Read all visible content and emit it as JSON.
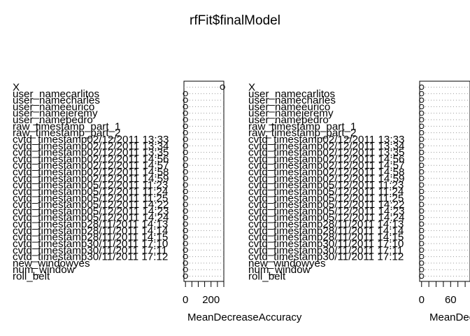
{
  "chart_data": {
    "type": "scatter",
    "title": "rfFit$finalModel",
    "variables": [
      "X",
      "user_namecarlitos",
      "user_namecharles",
      "user_nameeurico",
      "user_namejeremy",
      "user_namepedro",
      "raw_timestamp_part_1",
      "raw_timestamp_part_2",
      "cvtd_timestamp02/12/2011 13:33",
      "cvtd_timestamp02/12/2011 13:34",
      "cvtd_timestamp02/12/2011 13:35",
      "cvtd_timestamp02/12/2011 14:56",
      "cvtd_timestamp02/12/2011 14:57",
      "cvtd_timestamp02/12/2011 14:58",
      "cvtd_timestamp02/12/2011 14:59",
      "cvtd_timestamp05/12/2011 11:23",
      "cvtd_timestamp05/12/2011 11:24",
      "cvtd_timestamp05/12/2011 11:25",
      "cvtd_timestamp05/12/2011 14:22",
      "cvtd_timestamp05/12/2011 14:23",
      "cvtd_timestamp05/12/2011 14:24",
      "cvtd_timestamp28/11/2011 14:13",
      "cvtd_timestamp28/11/2011 14:14",
      "cvtd_timestamp28/11/2011 14:15",
      "cvtd_timestamp30/11/2011 17:10",
      "cvtd_timestamp30/11/2011 17:11",
      "cvtd_timestamp30/11/2011 17:12",
      "new_windowyes",
      "num_window",
      "roll_belt"
    ],
    "panels": [
      {
        "xlabel": "MeanDecreaseAccuracy",
        "ticks": [
          0,
          200
        ],
        "xlim": [
          -12,
          300
        ],
        "values": [
          290,
          0,
          0,
          0,
          0,
          0,
          0,
          0,
          0,
          0,
          0,
          0,
          0,
          0,
          0,
          0,
          0,
          0,
          0,
          0,
          0,
          0,
          0,
          0,
          0,
          0,
          0,
          0,
          0,
          0
        ]
      },
      {
        "xlabel": "MeanDecreaseGini",
        "ticks": [
          0,
          60
        ],
        "xlim": [
          -4,
          100
        ],
        "values": [
          0,
          0,
          0,
          0,
          0,
          0,
          0,
          0,
          0,
          0,
          0,
          0,
          0,
          0,
          0,
          0,
          0,
          0,
          0,
          0,
          0,
          0,
          0,
          0,
          0,
          0,
          0,
          0,
          0,
          0
        ]
      }
    ]
  }
}
